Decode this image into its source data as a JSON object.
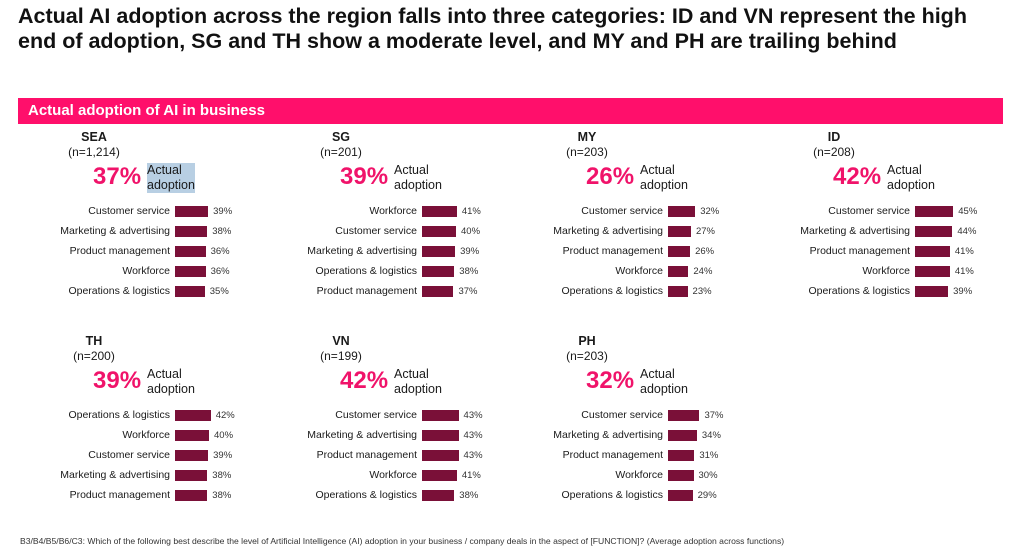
{
  "page": {
    "title": "Actual AI adoption across the region falls into three categories: ID and VN represent the high end of adoption, SG and TH show a moderate level, and MY and PH are trailing behind",
    "banner": "Actual adoption of AI in business",
    "footnote": "B3/B4/B5/B6/C3: Which of the following best describe the level of Artificial Intelligence (AI) adoption in your business / company deals in the aspect of [FUNCTION]? (Average adoption across functions)"
  },
  "colors": {
    "accent": "#ff0f6b",
    "pct": "#f0136a",
    "bar": "#7a1038",
    "highlight": "#b8cfe3"
  },
  "chart_data": [
    {
      "type": "bar",
      "title": "SEA",
      "n": "(n=1,214)",
      "overall": "37%",
      "overall_label": "Actual adoption",
      "categories": [
        "Customer service",
        "Marketing & advertising",
        "Product management",
        "Workforce",
        "Operations & logistics"
      ],
      "values": [
        39,
        38,
        36,
        36,
        35
      ],
      "labels": [
        "39%",
        "38%",
        "36%",
        "36%",
        "35%"
      ]
    },
    {
      "type": "bar",
      "title": "SG",
      "n": "(n=201)",
      "overall": "39%",
      "overall_label": "Actual adoption",
      "categories": [
        "Workforce",
        "Customer service",
        "Marketing & advertising",
        "Operations & logistics",
        "Product management"
      ],
      "values": [
        41,
        40,
        39,
        38,
        37
      ],
      "labels": [
        "41%",
        "40%",
        "39%",
        "38%",
        "37%"
      ]
    },
    {
      "type": "bar",
      "title": "MY",
      "n": "(n=203)",
      "overall": "26%",
      "overall_label": "Actual adoption",
      "categories": [
        "Customer service",
        "Marketing & advertising",
        "Product management",
        "Workforce",
        "Operations & logistics"
      ],
      "values": [
        32,
        27,
        26,
        24,
        23
      ],
      "labels": [
        "32%",
        "27%",
        "26%",
        "24%",
        "23%"
      ]
    },
    {
      "type": "bar",
      "title": "ID",
      "n": "(n=208)",
      "overall": "42%",
      "overall_label": "Actual adoption",
      "categories": [
        "Customer service",
        "Marketing & advertising",
        "Product management",
        "Workforce",
        "Operations & logistics"
      ],
      "values": [
        45,
        44,
        41,
        41,
        39
      ],
      "labels": [
        "45%",
        "44%",
        "41%",
        "41%",
        "39%"
      ]
    },
    {
      "type": "bar",
      "title": "TH",
      "n": "(n=200)",
      "overall": "39%",
      "overall_label": "Actual adoption",
      "categories": [
        "Operations & logistics",
        "Workforce",
        "Customer service",
        "Marketing & advertising",
        "Product management"
      ],
      "values": [
        42,
        40,
        39,
        38,
        38
      ],
      "labels": [
        "42%",
        "40%",
        "39%",
        "38%",
        "38%"
      ]
    },
    {
      "type": "bar",
      "title": "VN",
      "n": "(n=199)",
      "overall": "42%",
      "overall_label": "Actual adoption",
      "categories": [
        "Customer service",
        "Marketing & advertising",
        "Product management",
        "Workforce",
        "Operations & logistics"
      ],
      "values": [
        43,
        43,
        43,
        41,
        38
      ],
      "labels": [
        "43%",
        "43%",
        "43%",
        "41%",
        "38%"
      ]
    },
    {
      "type": "bar",
      "title": "PH",
      "n": "(n=203)",
      "overall": "32%",
      "overall_label": "Actual adoption",
      "categories": [
        "Customer service",
        "Marketing & advertising",
        "Product management",
        "Workforce",
        "Operations & logistics"
      ],
      "values": [
        37,
        34,
        31,
        30,
        29
      ],
      "labels": [
        "37%",
        "34%",
        "31%",
        "30%",
        "29%"
      ]
    }
  ]
}
